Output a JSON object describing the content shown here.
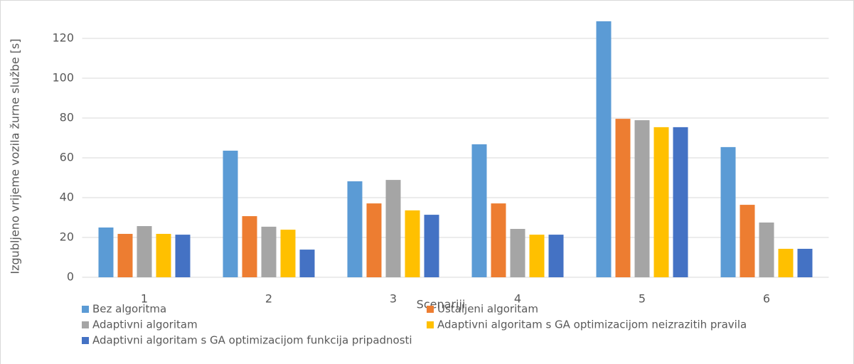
{
  "chart_data": {
    "type": "bar",
    "y_label": "Izgubljeno vrijeme vozila žurne službe [s]",
    "x_label": "Scenariji",
    "categories": [
      "1",
      "2",
      "3",
      "4",
      "5",
      "6"
    ],
    "series": [
      {
        "name": "Bez algoritma",
        "color": "#5b9bd5",
        "values": [
          25,
          63.6,
          48.2,
          66.8,
          128.6,
          65.4
        ]
      },
      {
        "name": "Ustaljeni algoritam",
        "color": "#ed7d31",
        "values": [
          21.8,
          30.7,
          37.1,
          37.1,
          79.6,
          36.4
        ]
      },
      {
        "name": "Adaptivni algoritam",
        "color": "#a5a5a5",
        "values": [
          25.7,
          25.4,
          48.9,
          24.3,
          78.9,
          27.5
        ]
      },
      {
        "name": "Adaptivni algoritam s GA optimizacijom neizrazitih pravila",
        "color": "#ffc000",
        "values": [
          21.8,
          23.9,
          33.6,
          21.4,
          75.4,
          14.3
        ]
      },
      {
        "name": "Adaptivni algoritam s GA optimizacijom funkcija pripadnosti",
        "color": "#4472c4",
        "values": [
          21.4,
          13.9,
          31.4,
          21.4,
          75.4,
          14.3
        ]
      }
    ],
    "ylim": [
      0,
      135
    ],
    "yticks": [
      0,
      20,
      40,
      60,
      80,
      100,
      120
    ],
    "grid": true
  }
}
